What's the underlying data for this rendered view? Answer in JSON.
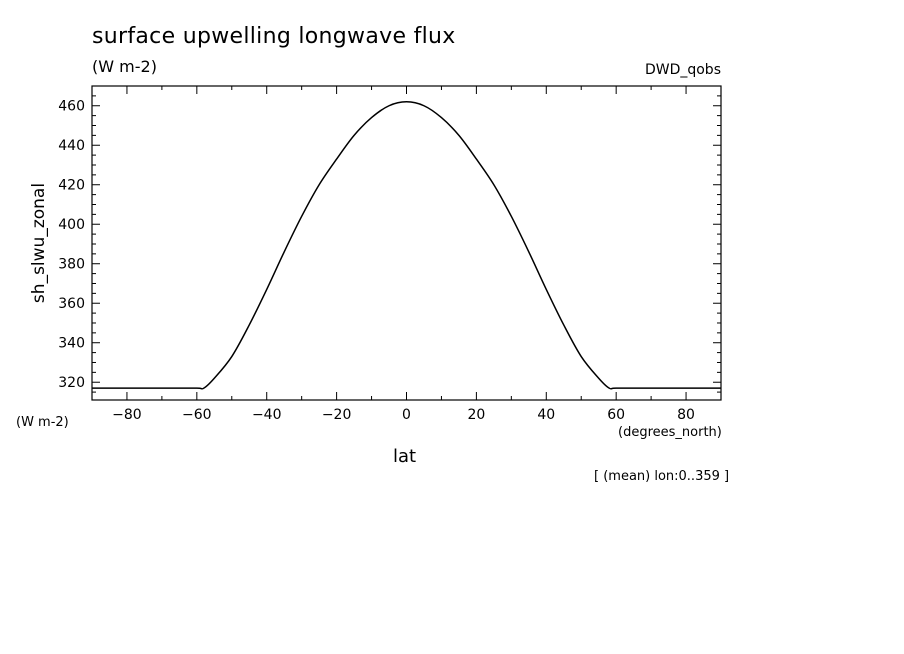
{
  "chart_data": {
    "type": "line",
    "title": "surface upwelling longwave flux",
    "units": "(W m-2)",
    "dataset": "DWD_qobs",
    "ylabel": "sh_slwu_zonal",
    "yunit": "(W m-2)",
    "xlabel": "lat",
    "xunit": "(degrees_north)",
    "note": "[ (mean) lon:0..359 ]",
    "xlim": [
      -90,
      90
    ],
    "ylim": [
      311,
      470
    ],
    "xticks": [
      -80,
      -60,
      -40,
      -20,
      0,
      20,
      40,
      60,
      80
    ],
    "yticks": [
      320,
      340,
      360,
      380,
      400,
      420,
      440,
      460
    ],
    "series": [
      {
        "x": [
          -90,
          -80,
          -70,
          -60,
          -58,
          -55,
          -50,
          -45,
          -40,
          -35,
          -30,
          -25,
          -20,
          -15,
          -10,
          -5,
          0,
          5,
          10,
          15,
          20,
          25,
          30,
          35,
          40,
          45,
          50,
          55,
          58,
          60,
          70,
          80,
          90
        ],
        "y": [
          317,
          317,
          317,
          317,
          317,
          322,
          333,
          349,
          367,
          386,
          404,
          420,
          433,
          445,
          454,
          460,
          462,
          460,
          454,
          445,
          433,
          420,
          404,
          386,
          367,
          349,
          333,
          322,
          317,
          317,
          317,
          317,
          317
        ]
      }
    ]
  }
}
